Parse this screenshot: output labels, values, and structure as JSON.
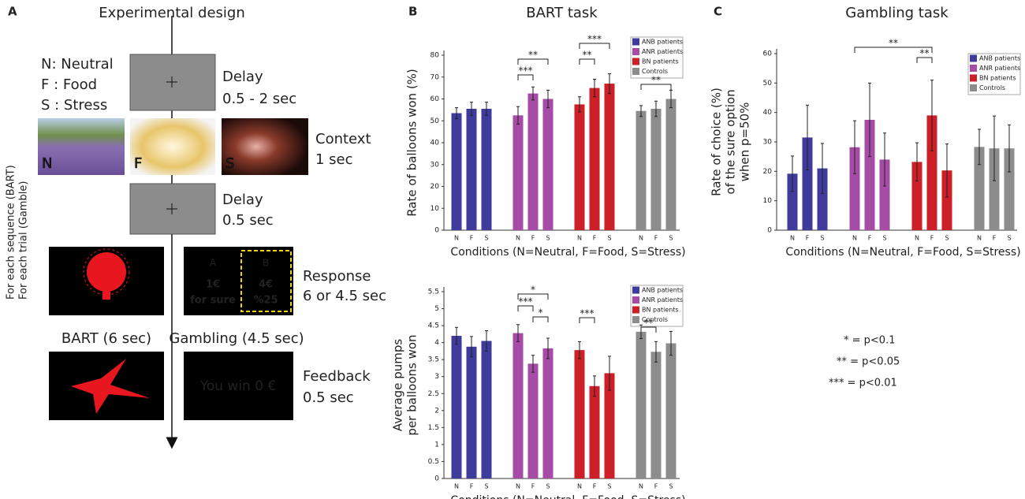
{
  "panels": [
    "A",
    "B",
    "C"
  ],
  "design": {
    "title": "Experimental design",
    "side": [
      "For each sequence (BART)",
      "For each trial (Gamble)"
    ],
    "conditions": [
      "N: Neutral",
      "F : Food",
      "S : Stress"
    ],
    "image_letters": [
      "N",
      "F",
      "S"
    ],
    "delay1": [
      "Delay",
      "0.5 - 2 sec"
    ],
    "context": [
      "Context",
      "1 sec"
    ],
    "delay2": [
      "Delay",
      "0.5 sec"
    ],
    "response": [
      "Response",
      "6 or 4.5 sec"
    ],
    "bart": "BART (6 sec)",
    "gambling": "Gambling (4.5 sec)",
    "feedback": [
      "Feedback",
      "0.5 sec"
    ],
    "option_a": [
      "A",
      "1€",
      "for sure"
    ],
    "option_b": [
      "B",
      "4€",
      "%25"
    ],
    "win": "You win 0 €"
  },
  "chart_data": [
    {
      "type": "bar",
      "title": "BART task",
      "ylabel": [
        "Rate of balloons won (%)"
      ],
      "xlabel": "Conditions (N=Neutral, F=Food, S=Stress)",
      "categories": [
        "N",
        "F",
        "S"
      ],
      "series": [
        {
          "name": "ANB patients",
          "color": "#3f3b9c",
          "values": [
            53.5,
            55.5,
            55.5
          ],
          "errors": [
            2.5,
            3,
            3
          ]
        },
        {
          "name": "ANR patients",
          "color": "#a64ca6",
          "values": [
            52.5,
            62.5,
            60
          ],
          "errors": [
            4,
            3,
            4
          ]
        },
        {
          "name": "BN patients",
          "color": "#cc1f27",
          "values": [
            57.5,
            65,
            67
          ],
          "errors": [
            3.5,
            4,
            4.5
          ]
        },
        {
          "name": "Controls",
          "color": "#8c8c8c",
          "values": [
            54.5,
            55.5,
            60
          ],
          "errors": [
            2.5,
            3.5,
            4
          ]
        }
      ],
      "annotations": [
        "***",
        "**",
        "**",
        "***",
        "**"
      ],
      "ylim": [
        0,
        80
      ],
      "yticks": [
        0,
        10,
        20,
        30,
        40,
        50,
        60,
        70,
        80
      ],
      "legend": "upper right"
    },
    {
      "type": "bar",
      "ylabel": [
        "Average pumps",
        "per balloons won"
      ],
      "xlabel": "Conditions (N=Neutral, F=Food, S=Stress)",
      "categories": [
        "N",
        "F",
        "S"
      ],
      "series": [
        {
          "name": "ANB patients",
          "color": "#3f3b9c",
          "values": [
            4.2,
            3.88,
            4.05
          ],
          "errors": [
            0.25,
            0.3,
            0.3
          ]
        },
        {
          "name": "ANR patients",
          "color": "#a64ca6",
          "values": [
            4.28,
            3.38,
            3.83
          ],
          "errors": [
            0.25,
            0.25,
            0.3
          ]
        },
        {
          "name": "BN patients",
          "color": "#cc1f27",
          "values": [
            3.78,
            2.72,
            3.1
          ],
          "errors": [
            0.25,
            0.3,
            0.5
          ]
        },
        {
          "name": "Controls",
          "color": "#8c8c8c",
          "values": [
            4.32,
            3.73,
            3.98
          ],
          "errors": [
            0.2,
            0.3,
            0.35
          ]
        }
      ],
      "annotations": [
        "*",
        "***",
        "*",
        "***",
        "**"
      ],
      "ylim": [
        0,
        5.5
      ],
      "yticks": [
        0,
        0.5,
        1,
        1.5,
        2,
        2.5,
        3,
        3.5,
        4,
        4.5,
        5,
        5.5
      ],
      "legend": "upper right"
    },
    {
      "type": "bar",
      "title": "Gambling task",
      "ylabel": [
        "Rate of choice (%)",
        "of the sure option",
        "when p=50%"
      ],
      "xlabel": "Conditions (N=Neutral, F=Food, S=Stress)",
      "categories": [
        "N",
        "F",
        "S"
      ],
      "series": [
        {
          "name": "ANB patients",
          "color": "#3f3b9c",
          "values": [
            19.2,
            31.5,
            21
          ],
          "errors": [
            6,
            11,
            8.5
          ]
        },
        {
          "name": "ANR patients",
          "color": "#a64ca6",
          "values": [
            28.2,
            37.5,
            24
          ],
          "errors": [
            9,
            12.5,
            9
          ]
        },
        {
          "name": "BN patients",
          "color": "#cc1f27",
          "values": [
            23.2,
            39,
            20.3
          ],
          "errors": [
            6.5,
            12,
            9
          ]
        },
        {
          "name": "Controls",
          "color": "#8c8c8c",
          "values": [
            28.3,
            27.8,
            27.8
          ],
          "errors": [
            6,
            11,
            8
          ]
        }
      ],
      "annotations": [
        "**",
        "**"
      ],
      "ylim": [
        0,
        60
      ],
      "yticks": [
        0,
        10,
        20,
        30,
        40,
        50,
        60
      ],
      "legend": "upper right"
    }
  ],
  "significance": [
    "* = p<0.1",
    "** = p<0.05",
    "*** = p<0.01"
  ]
}
